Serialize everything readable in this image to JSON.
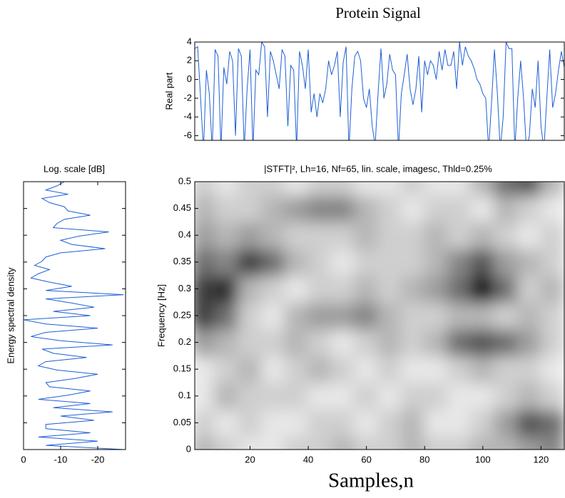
{
  "chart_data": [
    {
      "type": "line",
      "title": "Protein Signal",
      "ylabel": "Real part",
      "color": "#1f5fd6",
      "xlim": [
        1,
        128
      ],
      "ylim": [
        -6.5,
        4
      ],
      "yticks": [
        -6,
        -4,
        -2,
        0,
        2,
        4
      ],
      "x": [
        1,
        2,
        3,
        4,
        5,
        6,
        7,
        8,
        9,
        10,
        11,
        12,
        13,
        14,
        15,
        16,
        17,
        18,
        19,
        20,
        21,
        22,
        23,
        24,
        25,
        26,
        27,
        28,
        29,
        30,
        31,
        32,
        33,
        34,
        35,
        36,
        37,
        38,
        39,
        40,
        41,
        42,
        43,
        44,
        45,
        46,
        47,
        48,
        49,
        50,
        51,
        52,
        53,
        54,
        55,
        56,
        57,
        58,
        59,
        60,
        61,
        62,
        63,
        64,
        65,
        66,
        67,
        68,
        69,
        70,
        71,
        72,
        73,
        74,
        75,
        76,
        77,
        78,
        79,
        80,
        81,
        82,
        83,
        84,
        85,
        86,
        87,
        88,
        89,
        90,
        91,
        92,
        93,
        94,
        95,
        96,
        97,
        98,
        99,
        100,
        101,
        102,
        103,
        104,
        105,
        106,
        107,
        108,
        109,
        110,
        111,
        112,
        113,
        114,
        115,
        116,
        117,
        118,
        119,
        120,
        121,
        122,
        123,
        124,
        125,
        126,
        127,
        128
      ],
      "values": [
        3.3,
        3.5,
        -2,
        -7.5,
        1,
        -1.5,
        -7.5,
        3.2,
        2.5,
        -7.5,
        1.3,
        -0.5,
        3,
        2,
        -6,
        3.3,
        2.5,
        -7.5,
        -1,
        3.2,
        -7.5,
        1,
        0.5,
        4,
        3.5,
        -4,
        3,
        2,
        0.5,
        -1,
        3.2,
        2.5,
        -5,
        1.5,
        1,
        -7.5,
        3,
        1.5,
        -1,
        3.2,
        -3.5,
        -1.5,
        -4,
        -1.5,
        -2.5,
        -1,
        2,
        0.5,
        1.5,
        3,
        -4,
        1.8,
        3.5,
        -7.5,
        -1,
        2.5,
        3,
        2,
        -2,
        -3,
        -1,
        -5,
        -7,
        -1.5,
        3.3,
        -2,
        -0.5,
        2.7,
        1,
        0.5,
        -7.5,
        -1.5,
        0.5,
        2.7,
        -1,
        -2.7,
        -1,
        2.5,
        -3.5,
        2,
        0.5,
        2,
        1.5,
        0,
        3,
        1,
        3.2,
        1.5,
        1.5,
        3,
        -1,
        4,
        1.5,
        3.5,
        2.5,
        2,
        1.2,
        0,
        -0.5,
        -1.5,
        -2,
        -7.5,
        -2.5,
        3.2,
        -1.5,
        -7.5,
        -4,
        4,
        3.3,
        3.3,
        -7.5,
        -2,
        2,
        -2,
        -7.5,
        -6,
        -1,
        -3,
        2,
        -5,
        -7.5,
        -2,
        3.2,
        -3,
        -1.5,
        1,
        3,
        1.3
      ]
    },
    {
      "type": "line",
      "title": "Log. scale [dB]",
      "ylabel": "Energy spectral density",
      "color": "#1f5fd6",
      "xlim": [
        0,
        -27.5
      ],
      "xticks": [
        0,
        -10,
        -20
      ],
      "ylim": [
        0,
        0.5
      ],
      "y": [
        0,
        0.0078125,
        0.015625,
        0.0234375,
        0.03125,
        0.0390625,
        0.046875,
        0.0546875,
        0.0625,
        0.0703125,
        0.078125,
        0.0859375,
        0.09375,
        0.1015625,
        0.109375,
        0.1171875,
        0.125,
        0.1328125,
        0.140625,
        0.1484375,
        0.15625,
        0.1640625,
        0.171875,
        0.1796875,
        0.1875,
        0.1953125,
        0.203125,
        0.2109375,
        0.21875,
        0.2265625,
        0.234375,
        0.2421875,
        0.25,
        0.2578125,
        0.265625,
        0.2734375,
        0.28125,
        0.2890625,
        0.296875,
        0.3046875,
        0.3125,
        0.3203125,
        0.328125,
        0.3359375,
        0.34375,
        0.3515625,
        0.359375,
        0.3671875,
        0.375,
        0.3828125,
        0.390625,
        0.3984375,
        0.40625,
        0.4140625,
        0.421875,
        0.4296875,
        0.4375,
        0.4453125,
        0.453125,
        0.4609375,
        0.46875,
        0.4765625,
        0.484375,
        0.4921875,
        0.5
      ],
      "values": [
        -27,
        -6,
        -20,
        -4,
        -18,
        -6,
        -6,
        -19,
        -10,
        -24,
        -8,
        -18,
        -4,
        -12,
        -18,
        -7,
        -6,
        -14,
        -20,
        -9,
        -4,
        -6,
        -17,
        -8,
        -5,
        -24,
        -10,
        -2,
        -6,
        -20,
        -6,
        0,
        -18,
        -8,
        -19,
        -13,
        -6,
        -27,
        -6,
        -13,
        -7,
        -2,
        -4,
        -7,
        -3,
        -5,
        -6,
        -10,
        -22,
        -13,
        -10,
        -15,
        -23,
        -8,
        -9,
        -11,
        -18,
        -12,
        -11,
        -7,
        -5,
        -12,
        -6,
        -9,
        -11
      ]
    },
    {
      "type": "heatmap",
      "title": "|STFT|², Lh=16, Nf=65, lin. scale, imagesc, Thld=0.25%",
      "xlabel": "Samples,n",
      "ylabel": "Frequency [Hz]",
      "xlim": [
        1,
        128
      ],
      "xticks": [
        20,
        40,
        60,
        80,
        100,
        120
      ],
      "ylim": [
        0,
        0.5
      ],
      "yticks": [
        0,
        0.05,
        0.1,
        0.15,
        0.2,
        0.25,
        0.3,
        0.35,
        0.4,
        0.45,
        0.5
      ],
      "x": [
        4,
        12,
        20,
        28,
        36,
        44,
        52,
        60,
        68,
        76,
        84,
        92,
        100,
        108,
        116,
        124
      ],
      "y": [
        0,
        0.05,
        0.1,
        0.15,
        0.2,
        0.25,
        0.3,
        0.35,
        0.4,
        0.45,
        0.5
      ],
      "z": [
        [
          0.3,
          0.2,
          0.1,
          0.1,
          0.2,
          0.2,
          0.3,
          0.2,
          0.2,
          0.3,
          0.2,
          0.2,
          0.3,
          0.3,
          0.4,
          0.5
        ],
        [
          0.2,
          0.1,
          0.2,
          0.1,
          0.1,
          0.2,
          0.2,
          0.1,
          0.2,
          0.3,
          0.1,
          0.1,
          0.2,
          0.4,
          0.7,
          0.6
        ],
        [
          0.1,
          0.3,
          0.2,
          0.2,
          0.2,
          0.1,
          0.1,
          0.2,
          0.1,
          0.2,
          0.2,
          0.1,
          0.1,
          0.2,
          0.3,
          0.2
        ],
        [
          0.1,
          0.2,
          0.3,
          0.1,
          0.2,
          0.3,
          0.2,
          0.1,
          0.2,
          0.1,
          0.1,
          0.2,
          0.3,
          0.2,
          0.2,
          0.1
        ],
        [
          0.4,
          0.3,
          0.2,
          0.2,
          0.3,
          0.2,
          0.1,
          0.2,
          0.3,
          0.2,
          0.3,
          0.6,
          0.7,
          0.6,
          0.4,
          0.2
        ],
        [
          0.8,
          0.6,
          0.2,
          0.1,
          0.3,
          0.4,
          0.4,
          0.5,
          0.3,
          0.2,
          0.2,
          0.3,
          0.3,
          0.2,
          0.3,
          0.2
        ],
        [
          0.8,
          0.9,
          0.3,
          0.2,
          0.1,
          0.2,
          0.2,
          0.3,
          0.2,
          0.3,
          0.4,
          0.6,
          1.0,
          0.6,
          0.2,
          0.3
        ],
        [
          0.6,
          0.5,
          0.8,
          0.6,
          0.3,
          0.2,
          0.1,
          0.2,
          0.2,
          0.2,
          0.3,
          0.5,
          0.7,
          0.4,
          0.3,
          0.2
        ],
        [
          0.4,
          0.3,
          0.4,
          0.3,
          0.2,
          0.2,
          0.2,
          0.3,
          0.2,
          0.2,
          0.3,
          0.2,
          0.3,
          0.2,
          0.1,
          0.2
        ],
        [
          0.3,
          0.2,
          0.2,
          0.3,
          0.4,
          0.5,
          0.5,
          0.3,
          0.2,
          0.1,
          0.2,
          0.2,
          0.1,
          0.3,
          0.2,
          0.1
        ],
        [
          0.2,
          0.1,
          0.2,
          0.2,
          0.1,
          0.2,
          0.2,
          0.1,
          0.1,
          0.2,
          0.1,
          0.1,
          0.3,
          0.6,
          0.7,
          0.3
        ]
      ]
    }
  ]
}
